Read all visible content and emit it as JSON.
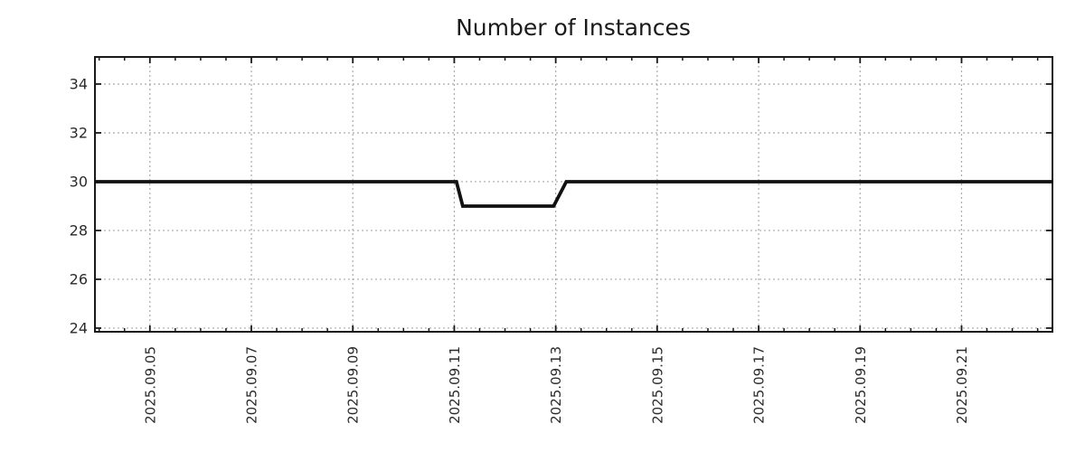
{
  "chart_data": {
    "type": "line",
    "title": "Number of Instances",
    "xlabel": "",
    "ylabel": "",
    "legend": "none",
    "grid": true,
    "grid_style": "dotted",
    "x_tick_labels": [
      "2025.09.05",
      "2025.09.07",
      "2025.09.09",
      "2025.09.11",
      "2025.09.13",
      "2025.09.15",
      "2025.09.17",
      "2025.09.19",
      "2025.09.21"
    ],
    "y_ticks": [
      24,
      26,
      28,
      30,
      32,
      34
    ],
    "y_tick_labels": [
      "24",
      "26",
      "28",
      "30",
      "32",
      "34"
    ],
    "x_range": [
      "2025-09-03 22:00",
      "2025-09-22 19:00"
    ],
    "y_range": [
      23.85,
      35.11
    ],
    "x_minor_step_days": 0.5,
    "series": [
      {
        "name": "instances",
        "color": "#111111",
        "line_width": 3.8,
        "points": [
          [
            "2025-09-03 22:00",
            30
          ],
          [
            "2025-09-11 01:00",
            30
          ],
          [
            "2025-09-11 04:00",
            29
          ],
          [
            "2025-09-12 23:00",
            29
          ],
          [
            "2025-09-13 05:00",
            30
          ],
          [
            "2025-09-22 19:00",
            30
          ]
        ]
      }
    ],
    "colors": {
      "axis": "#1a1a1a",
      "grid": "#aaaaaa",
      "text": "#2b2b2b",
      "background": "#ffffff"
    }
  }
}
